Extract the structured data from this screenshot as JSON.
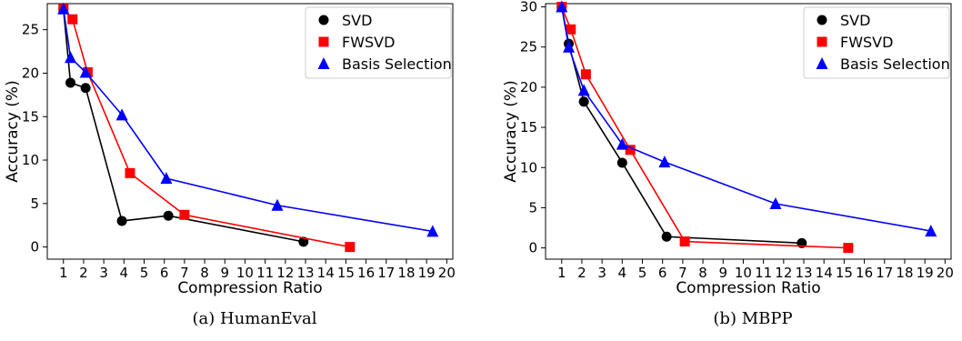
{
  "captions": [
    "(a) HumanEval",
    "(b) MBPP"
  ],
  "chart_data": [
    {
      "type": "line",
      "title": "",
      "xlabel": "Compression Ratio",
      "ylabel": "Accuracy (%)",
      "xlim": [
        0.2,
        20.3
      ],
      "ylim": [
        -1.4,
        28.0
      ],
      "xticks": [
        1,
        2,
        3,
        4,
        5,
        6,
        7,
        8,
        9,
        10,
        11,
        12,
        13,
        14,
        15,
        16,
        17,
        18,
        19,
        20
      ],
      "yticks": [
        0,
        5,
        10,
        15,
        20,
        25
      ],
      "legend_position": "top-right",
      "grid": false,
      "series": [
        {
          "name": "SVD",
          "color": "#000000",
          "marker": "circle",
          "x": [
            1.0,
            1.35,
            2.1,
            3.9,
            6.2,
            12.9
          ],
          "y": [
            27.4,
            18.9,
            18.3,
            3.0,
            3.6,
            0.6
          ]
        },
        {
          "name": "FWSVD",
          "color": "#ff0000",
          "marker": "square",
          "x": [
            1.0,
            1.45,
            2.2,
            4.3,
            7.0,
            15.2
          ],
          "y": [
            27.4,
            26.2,
            20.1,
            8.5,
            3.7,
            0.0
          ]
        },
        {
          "name": "Basis Selection",
          "color": "#0000ff",
          "marker": "triangle",
          "x": [
            1.0,
            1.35,
            2.1,
            3.9,
            6.1,
            11.6,
            19.3
          ],
          "y": [
            27.4,
            21.8,
            20.1,
            15.2,
            7.9,
            4.8,
            1.8
          ]
        }
      ]
    },
    {
      "type": "line",
      "title": "",
      "xlabel": "Compression Ratio",
      "ylabel": "Accuracy (%)",
      "xlim": [
        0.2,
        20.3
      ],
      "ylim": [
        -1.4,
        30.4
      ],
      "xticks": [
        1,
        2,
        3,
        4,
        5,
        6,
        7,
        8,
        9,
        10,
        11,
        12,
        13,
        14,
        15,
        16,
        17,
        18,
        19,
        20
      ],
      "yticks": [
        0,
        5,
        10,
        15,
        20,
        25,
        30
      ],
      "legend_position": "top-right",
      "grid": false,
      "series": [
        {
          "name": "SVD",
          "color": "#000000",
          "marker": "circle",
          "x": [
            1.0,
            1.35,
            2.1,
            4.0,
            6.2,
            12.9
          ],
          "y": [
            30.0,
            25.4,
            18.2,
            10.6,
            1.4,
            0.6
          ]
        },
        {
          "name": "FWSVD",
          "color": "#ff0000",
          "marker": "square",
          "x": [
            1.0,
            1.45,
            2.2,
            4.4,
            7.1,
            15.2
          ],
          "y": [
            30.0,
            27.2,
            21.6,
            12.2,
            0.8,
            0.0
          ]
        },
        {
          "name": "Basis Selection",
          "color": "#0000ff",
          "marker": "triangle",
          "x": [
            1.0,
            1.35,
            2.1,
            4.0,
            6.1,
            11.6,
            19.3
          ],
          "y": [
            30.0,
            25.0,
            19.6,
            12.9,
            10.7,
            5.5,
            2.1
          ]
        }
      ]
    }
  ]
}
